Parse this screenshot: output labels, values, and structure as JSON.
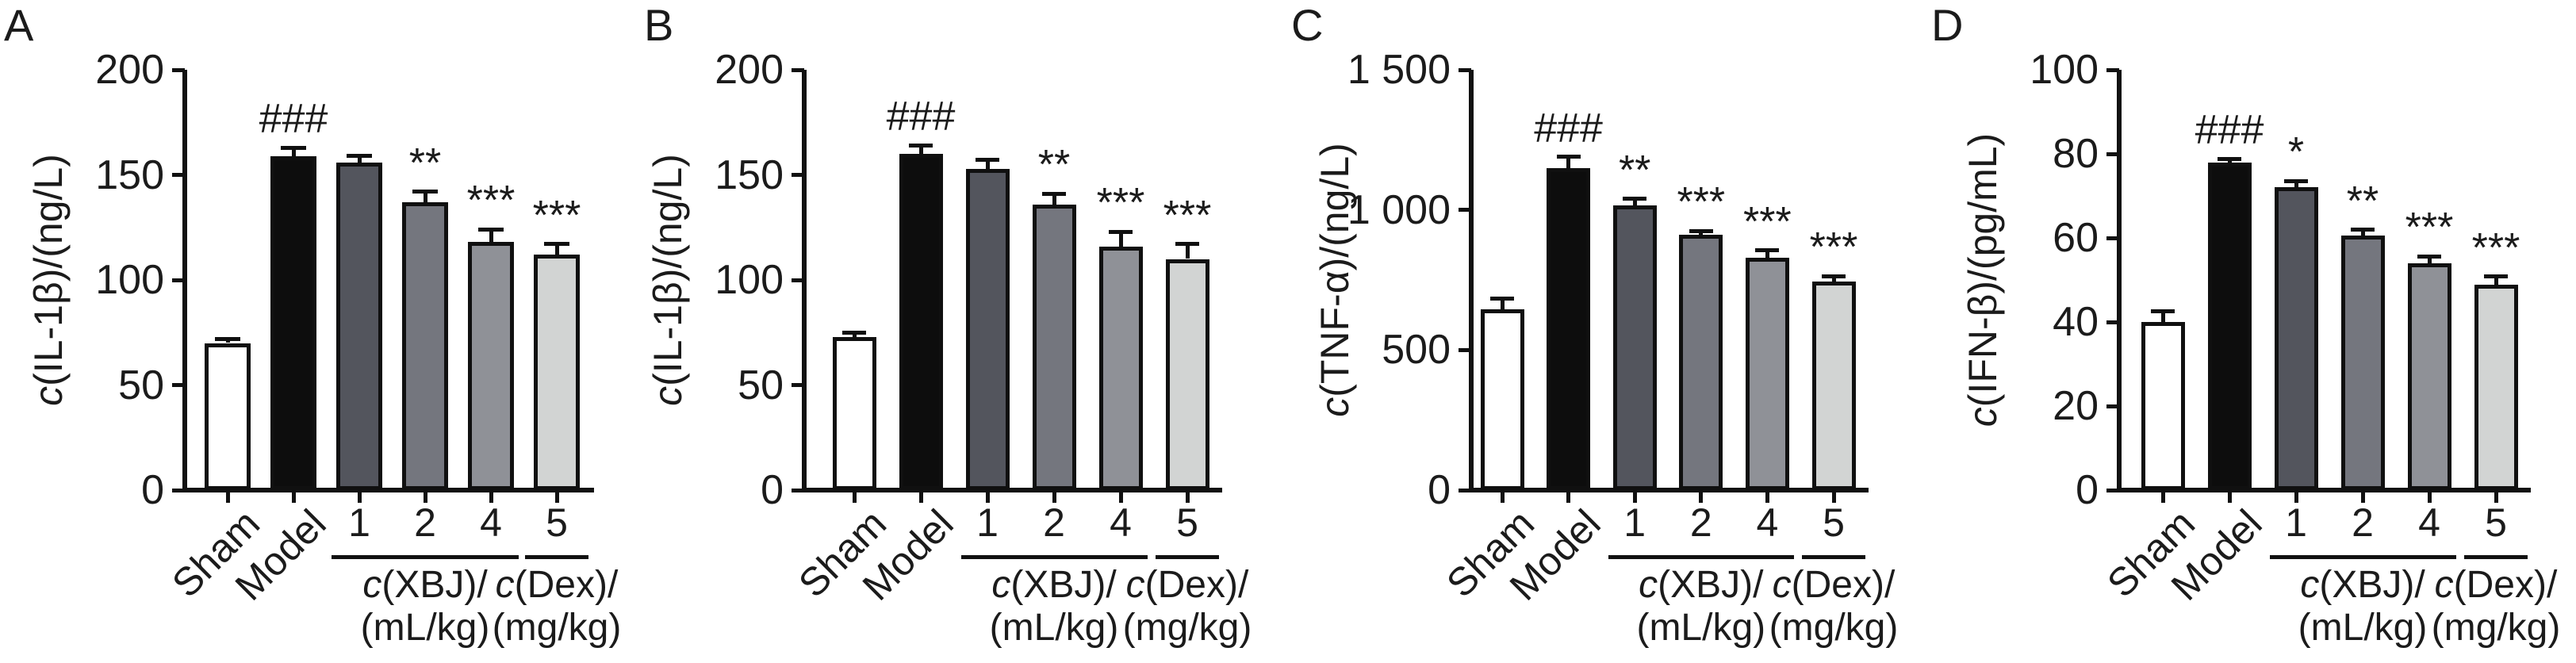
{
  "figure": {
    "background": "#ffffff",
    "text_color": "#1b1b1b",
    "bar_outline_color": "#101010"
  },
  "chart_data": [
    {
      "type": "bar",
      "panel": "A",
      "ylabel": {
        "sym": "c",
        "rest": "(IL-1β)/(ng/L)"
      },
      "ylim": [
        0,
        200
      ],
      "yticks": [
        "0",
        "50",
        "100",
        "150",
        "200"
      ],
      "categories": [
        "Sham",
        "Model",
        "1",
        "2",
        "4",
        "5"
      ],
      "values": [
        70,
        159,
        156,
        137,
        118,
        112
      ],
      "errors": [
        2,
        4,
        3,
        5,
        6,
        5
      ],
      "sig": [
        "",
        "###",
        "",
        "**",
        "***",
        "***"
      ],
      "bar_colors": [
        "#ffffff",
        "#0d0d0d",
        "#53555d",
        "#74767e",
        "#8f9197",
        "#d2d4d3"
      ],
      "xbj": {
        "sym": "c",
        "rest": "(XBJ)/",
        "unit": "(mL/kg)"
      },
      "dex": {
        "sym": "c",
        "rest": "(Dex)/",
        "unit": "(mg/kg)"
      }
    },
    {
      "type": "bar",
      "panel": "B",
      "ylabel": {
        "sym": "c",
        "rest": "(IL-1β)/(ng/L)"
      },
      "ylim": [
        0,
        200
      ],
      "yticks": [
        "0",
        "50",
        "100",
        "150",
        "200"
      ],
      "categories": [
        "Sham",
        "Model",
        "1",
        "2",
        "4",
        "5"
      ],
      "values": [
        73,
        160,
        153,
        136,
        116,
        110
      ],
      "errors": [
        2,
        4,
        4,
        5,
        7,
        7
      ],
      "sig": [
        "",
        "###",
        "",
        "**",
        "***",
        "***"
      ],
      "bar_colors": [
        "#ffffff",
        "#0d0d0d",
        "#53555d",
        "#74767e",
        "#8f9197",
        "#d2d4d3"
      ],
      "xbj": {
        "sym": "c",
        "rest": "(XBJ)/",
        "unit": "(mL/kg)"
      },
      "dex": {
        "sym": "c",
        "rest": "(Dex)/",
        "unit": "(mg/kg)"
      }
    },
    {
      "type": "bar",
      "panel": "C",
      "ylabel": {
        "sym": "c",
        "rest": "(TNF-α)/(ng/L)"
      },
      "ylim": [
        0,
        1500
      ],
      "yticks": [
        "0",
        "500",
        "1 000",
        "1 500"
      ],
      "categories": [
        "Sham",
        "Model",
        "1",
        "2",
        "4",
        "5"
      ],
      "values": [
        645,
        1150,
        1015,
        910,
        830,
        745
      ],
      "errors": [
        38,
        40,
        25,
        15,
        25,
        18
      ],
      "sig": [
        "",
        "###",
        "**",
        "***",
        "***",
        "***"
      ],
      "bar_colors": [
        "#ffffff",
        "#0d0d0d",
        "#53555d",
        "#74767e",
        "#8f9197",
        "#d2d4d3"
      ],
      "xbj": {
        "sym": "c",
        "rest": "(XBJ)/",
        "unit": "(mL/kg)"
      },
      "dex": {
        "sym": "c",
        "rest": "(Dex)/",
        "unit": "(mg/kg)"
      }
    },
    {
      "type": "bar",
      "panel": "D",
      "ylabel": {
        "sym": "c",
        "rest": "(IFN-β)/(pg/mL)"
      },
      "ylim": [
        0,
        100
      ],
      "yticks": [
        "0",
        "20",
        "40",
        "60",
        "80",
        "100"
      ],
      "categories": [
        "Sham",
        "Model",
        "1",
        "2",
        "4",
        "5"
      ],
      "values": [
        40,
        78,
        72,
        60.5,
        54,
        48.8
      ],
      "errors": [
        2.6,
        0.8,
        1.5,
        1.4,
        1.6,
        2
      ],
      "sig": [
        "",
        "###",
        "*",
        "**",
        "***",
        "***"
      ],
      "bar_colors": [
        "#ffffff",
        "#0d0d0d",
        "#53555d",
        "#74767e",
        "#8f9197",
        "#d2d4d3"
      ],
      "xbj": {
        "sym": "c",
        "rest": "(XBJ)/",
        "unit": "(mL/kg)"
      },
      "dex": {
        "sym": "c",
        "rest": "(Dex)/",
        "unit": "(mg/kg)"
      }
    }
  ]
}
